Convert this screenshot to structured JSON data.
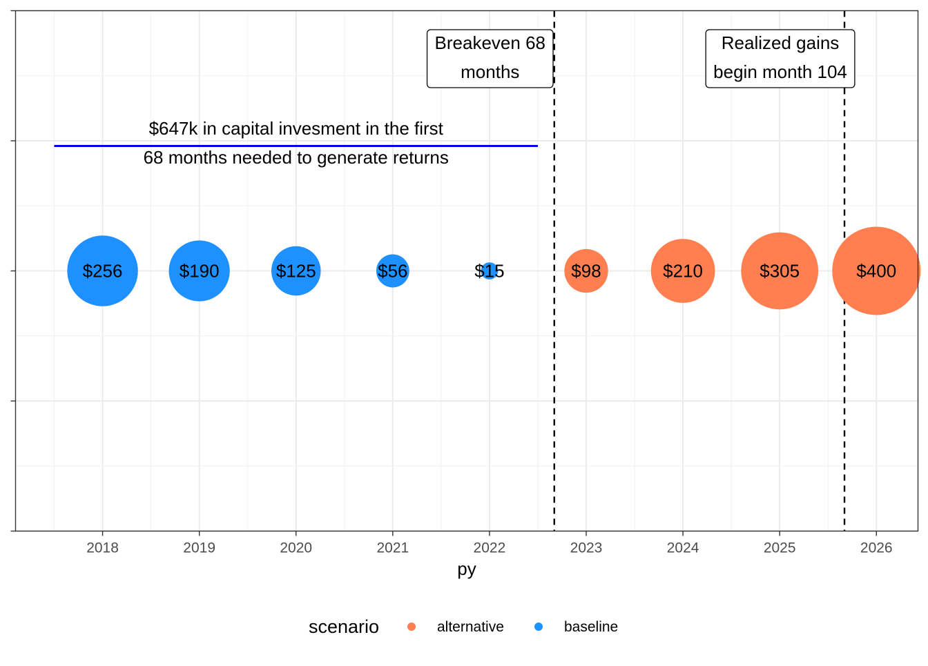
{
  "chart_data": {
    "type": "scatter",
    "x_label": "py",
    "x_ticks": [
      "2018",
      "2019",
      "2020",
      "2021",
      "2022",
      "2023",
      "2024",
      "2025",
      "2026"
    ],
    "x_range": [
      2017.1,
      2026.43
    ],
    "y_range": [
      0,
      1
    ],
    "y_value": 0.5,
    "grid": true,
    "points": [
      {
        "x": 2018,
        "value": 256,
        "label": "$256",
        "scenario": "baseline"
      },
      {
        "x": 2019,
        "value": 190,
        "label": "$190",
        "scenario": "baseline"
      },
      {
        "x": 2020,
        "value": 125,
        "label": "$125",
        "scenario": "baseline"
      },
      {
        "x": 2021,
        "value": 56,
        "label": "$56",
        "scenario": "baseline"
      },
      {
        "x": 2022,
        "value": 15,
        "label": "$15",
        "scenario": "baseline"
      },
      {
        "x": 2023,
        "value": 98,
        "label": "$98",
        "scenario": "alternative"
      },
      {
        "x": 2024,
        "value": 210,
        "label": "$210",
        "scenario": "alternative"
      },
      {
        "x": 2025,
        "value": 305,
        "label": "$305",
        "scenario": "alternative"
      },
      {
        "x": 2026,
        "value": 400,
        "label": "$400",
        "scenario": "alternative"
      }
    ],
    "vlines": [
      {
        "x": 2022.67,
        "annotation": [
          "Breakeven 68",
          "months"
        ]
      },
      {
        "x": 2025.67,
        "annotation": [
          "Realized gains",
          "begin month 104"
        ]
      }
    ],
    "segment": {
      "x_start": 2017.5,
      "x_end": 2022.5,
      "y": 0.74,
      "color": "#0000EE",
      "annotation": [
        "$647k in capital invesment in the first",
        "68  months needed to generate returns"
      ]
    },
    "legend": {
      "title": "scenario",
      "placement": "bottom",
      "items": [
        {
          "name": "alternative",
          "color": "#FF7F50"
        },
        {
          "name": "baseline",
          "color": "#1E90FF"
        }
      ]
    },
    "colors": {
      "alternative": "#FF7F50",
      "baseline": "#1E90FF"
    }
  }
}
